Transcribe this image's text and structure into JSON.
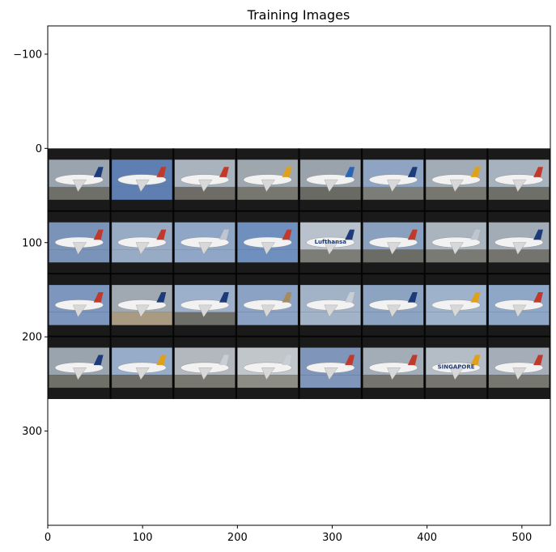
{
  "chart_data": {
    "type": "image",
    "title": "Training Images",
    "xlabel": "",
    "ylabel": "",
    "xlim": [
      0,
      530
    ],
    "ylim": [
      400,
      -130
    ],
    "x_ticks": [
      0,
      100,
      200,
      300,
      400,
      500
    ],
    "y_ticks": [
      -100,
      0,
      100,
      200,
      300
    ],
    "x_tick_labels": [
      "0",
      "100",
      "200",
      "300",
      "400",
      "500"
    ],
    "y_tick_labels": [
      "−100",
      "0",
      "100",
      "200",
      "300"
    ],
    "grid": false,
    "image_grid": {
      "rows": 4,
      "cols": 8,
      "extent_x": [
        0,
        530
      ],
      "extent_y": [
        0,
        266
      ],
      "background_color": "#1a1a1a",
      "tiles": [
        {
          "row": 0,
          "col": 0,
          "sky": "#9aa4ae",
          "ground": "#6f6f6a",
          "tail": "#1d3b7a",
          "label": ""
        },
        {
          "row": 0,
          "col": 1,
          "sky": "#5f7fb3",
          "ground": "#5f7fb3",
          "tail": "#c0392b",
          "label": ""
        },
        {
          "row": 0,
          "col": 2,
          "sky": "#a9b3bd",
          "ground": "#6d6c66",
          "tail": "#c0392b",
          "label": ""
        },
        {
          "row": 0,
          "col": 3,
          "sky": "#9ea6ae",
          "ground": "#77766f",
          "tail": "#e1a019",
          "label": ""
        },
        {
          "row": 0,
          "col": 4,
          "sky": "#9aa3ac",
          "ground": "#6a6a64",
          "tail": "#2c64b4",
          "label": ""
        },
        {
          "row": 0,
          "col": 5,
          "sky": "#8fa4c2",
          "ground": "#7b7d78",
          "tail": "#1d3b7a",
          "label": ""
        },
        {
          "row": 0,
          "col": 6,
          "sky": "#a2acb6",
          "ground": "#77766f",
          "tail": "#e1a019",
          "label": ""
        },
        {
          "row": 0,
          "col": 7,
          "sky": "#a6b2bd",
          "ground": "#6f6f69",
          "tail": "#c0392b",
          "label": ""
        },
        {
          "row": 1,
          "col": 0,
          "sky": "#7a93b8",
          "ground": "#7a93b8",
          "tail": "#c0392b",
          "label": ""
        },
        {
          "row": 1,
          "col": 1,
          "sky": "#98abc5",
          "ground": "#98abc5",
          "tail": "#c0392b",
          "label": ""
        },
        {
          "row": 1,
          "col": 2,
          "sky": "#8fa6c6",
          "ground": "#8fa6c6",
          "tail": "#bfc6cf",
          "label": ""
        },
        {
          "row": 1,
          "col": 3,
          "sky": "#6f8fbf",
          "ground": "#6f8fbf",
          "tail": "#c0392b",
          "label": ""
        },
        {
          "row": 1,
          "col": 4,
          "sky": "#b9c2cc",
          "ground": "#7d7d78",
          "tail": "#1d3b7a",
          "label": "Lufthansa"
        },
        {
          "row": 1,
          "col": 5,
          "sky": "#8aa0bf",
          "ground": "#6c6c66",
          "tail": "#c0392b",
          "label": ""
        },
        {
          "row": 1,
          "col": 6,
          "sky": "#a9b4bf",
          "ground": "#7a7a74",
          "tail": "#bfc6cf",
          "label": ""
        },
        {
          "row": 1,
          "col": 7,
          "sky": "#a2acb6",
          "ground": "#74736d",
          "tail": "#1d3b7a",
          "label": ""
        },
        {
          "row": 2,
          "col": 0,
          "sky": "#7d96bd",
          "ground": "#7d96bd",
          "tail": "#c0392b",
          "label": ""
        },
        {
          "row": 2,
          "col": 1,
          "sky": "#a0a9b2",
          "ground": "#a89b82",
          "tail": "#1d3b7a",
          "label": ""
        },
        {
          "row": 2,
          "col": 2,
          "sky": "#9cb0cb",
          "ground": "#6f6f69",
          "tail": "#1d3b7a",
          "label": ""
        },
        {
          "row": 2,
          "col": 3,
          "sky": "#8ba2c4",
          "ground": "#8ba2c4",
          "tail": "#a88b5c",
          "label": ""
        },
        {
          "row": 2,
          "col": 4,
          "sky": "#a3b3c7",
          "ground": "#a3b3c7",
          "tail": "#c9ced4",
          "label": ""
        },
        {
          "row": 2,
          "col": 5,
          "sky": "#8da3c2",
          "ground": "#8da3c2",
          "tail": "#1d3b7a",
          "label": ""
        },
        {
          "row": 2,
          "col": 6,
          "sky": "#9eb2cb",
          "ground": "#9eb2cb",
          "tail": "#e1a019",
          "label": ""
        },
        {
          "row": 2,
          "col": 7,
          "sky": "#8fa7c6",
          "ground": "#8fa7c6",
          "tail": "#c0392b",
          "label": ""
        },
        {
          "row": 3,
          "col": 0,
          "sky": "#9aa4ae",
          "ground": "#6f7068",
          "tail": "#1d3b7a",
          "label": ""
        },
        {
          "row": 3,
          "col": 1,
          "sky": "#96acc8",
          "ground": "#6d6c66",
          "tail": "#e1a019",
          "label": ""
        },
        {
          "row": 3,
          "col": 2,
          "sky": "#b2b8be",
          "ground": "#787770",
          "tail": "#c9ced4",
          "label": ""
        },
        {
          "row": 3,
          "col": 3,
          "sky": "#c1c6ca",
          "ground": "#8d8d86",
          "tail": "#c9ced4",
          "label": ""
        },
        {
          "row": 3,
          "col": 4,
          "sky": "#7f96ba",
          "ground": "#7f96ba",
          "tail": "#c0392b",
          "label": ""
        },
        {
          "row": 3,
          "col": 5,
          "sky": "#a3adb7",
          "ground": "#75746e",
          "tail": "#c0392b",
          "label": ""
        },
        {
          "row": 3,
          "col": 6,
          "sky": "#b4bdc6",
          "ground": "#76756f",
          "tail": "#e1a019",
          "label": "SINGAPORE"
        },
        {
          "row": 3,
          "col": 7,
          "sky": "#a5aeb8",
          "ground": "#77766f",
          "tail": "#c0392b",
          "label": ""
        }
      ]
    }
  }
}
